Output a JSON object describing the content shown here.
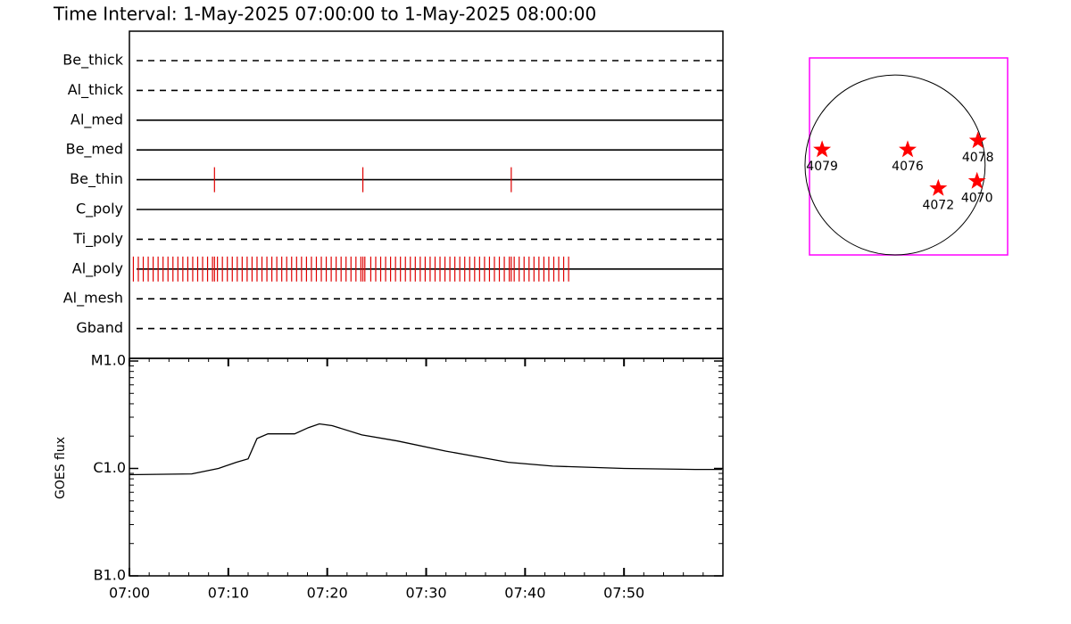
{
  "title": "Time Interval:  1-May-2025 07:00:00 to  1-May-2025 08:00:00",
  "chart_data": [
    {
      "type": "timeline",
      "xlim": [
        0,
        60
      ],
      "event_color": "#e00000",
      "rows": [
        {
          "name": "Be_thick",
          "style": "dashed"
        },
        {
          "name": "Al_thick",
          "style": "dashed"
        },
        {
          "name": "Al_med",
          "style": "solid"
        },
        {
          "name": "Be_med",
          "style": "solid"
        },
        {
          "name": "Be_thin",
          "style": "solid",
          "events": [
            8.6,
            23.6,
            38.6
          ]
        },
        {
          "name": "C_poly",
          "style": "solid"
        },
        {
          "name": "Ti_poly",
          "style": "dashed"
        },
        {
          "name": "Al_poly",
          "style": "solid",
          "events": [
            0.4,
            0.9,
            1.4,
            1.9,
            2.4,
            2.9,
            3.4,
            3.9,
            4.4,
            4.9,
            5.4,
            5.9,
            6.4,
            6.9,
            7.4,
            7.9,
            8.4,
            8.6,
            8.9,
            9.4,
            9.9,
            10.4,
            10.9,
            11.4,
            11.9,
            12.4,
            12.9,
            13.4,
            13.9,
            14.4,
            14.9,
            15.4,
            15.9,
            16.4,
            16.9,
            17.4,
            17.9,
            18.4,
            18.9,
            19.4,
            19.9,
            20.4,
            20.9,
            21.4,
            21.9,
            22.4,
            22.9,
            23.4,
            23.6,
            23.8,
            24.4,
            24.9,
            25.4,
            25.9,
            26.4,
            26.9,
            27.4,
            27.9,
            28.4,
            28.9,
            29.4,
            29.9,
            30.4,
            30.9,
            31.4,
            31.9,
            32.4,
            32.9,
            33.4,
            33.9,
            34.4,
            34.9,
            35.4,
            35.9,
            36.4,
            36.9,
            37.4,
            37.9,
            38.4,
            38.6,
            38.9,
            39.4,
            39.9,
            40.4,
            40.9,
            41.4,
            41.9,
            42.4,
            42.9,
            43.4,
            43.9,
            44.4
          ]
        },
        {
          "name": "Al_mesh",
          "style": "dashed"
        },
        {
          "name": "Gband",
          "style": "dashed"
        }
      ]
    },
    {
      "type": "line",
      "ylabel": "GOES flux",
      "color": "#000000",
      "log_y": true,
      "xlim": [
        0,
        60
      ],
      "xticks": [
        {
          "value": 0,
          "label": "07:00"
        },
        {
          "value": 10,
          "label": "07:10"
        },
        {
          "value": 20,
          "label": "07:20"
        },
        {
          "value": 30,
          "label": "07:30"
        },
        {
          "value": 40,
          "label": "07:40"
        },
        {
          "value": 50,
          "label": "07:50"
        }
      ],
      "ylim": [
        1e-07,
        1e-05
      ],
      "yticks": [
        {
          "value": 1e-07,
          "label": "B1.0"
        },
        {
          "value": 1e-06,
          "label": "C1.0"
        },
        {
          "value": 1e-05,
          "label": "M1.0"
        }
      ],
      "x": [
        0,
        6.3,
        9.0,
        10.8,
        12.0,
        12.9,
        14.0,
        16.7,
        18.1,
        19.2,
        20.5,
        23.5,
        27.1,
        32.0,
        38.3,
        42.8,
        50.0,
        57.2,
        59.9
      ],
      "values": [
        8.75e-07,
        8.9e-07,
        1e-06,
        1.14e-06,
        1.23e-06,
        1.9e-06,
        2.1e-06,
        2.1e-06,
        2.4e-06,
        2.6e-06,
        2.5e-06,
        2.05e-06,
        1.8e-06,
        1.45e-06,
        1.14e-06,
        1.05e-06,
        1e-06,
        9.8e-07,
        9.8e-07
      ]
    },
    {
      "type": "map",
      "xlim": [
        -0.95,
        1.25
      ],
      "ylim": [
        -1.0,
        1.19
      ],
      "disk_radius": 1,
      "color": "#ff0000",
      "frame_color": "#ff00ff",
      "points": [
        {
          "label": "4079",
          "x": -0.81,
          "y": 0.17
        },
        {
          "label": "4076",
          "x": 0.14,
          "y": 0.17
        },
        {
          "label": "4078",
          "x": 0.92,
          "y": 0.27
        },
        {
          "label": "4072",
          "x": 0.48,
          "y": -0.26
        },
        {
          "label": "4070",
          "x": 0.91,
          "y": -0.18
        }
      ]
    }
  ]
}
